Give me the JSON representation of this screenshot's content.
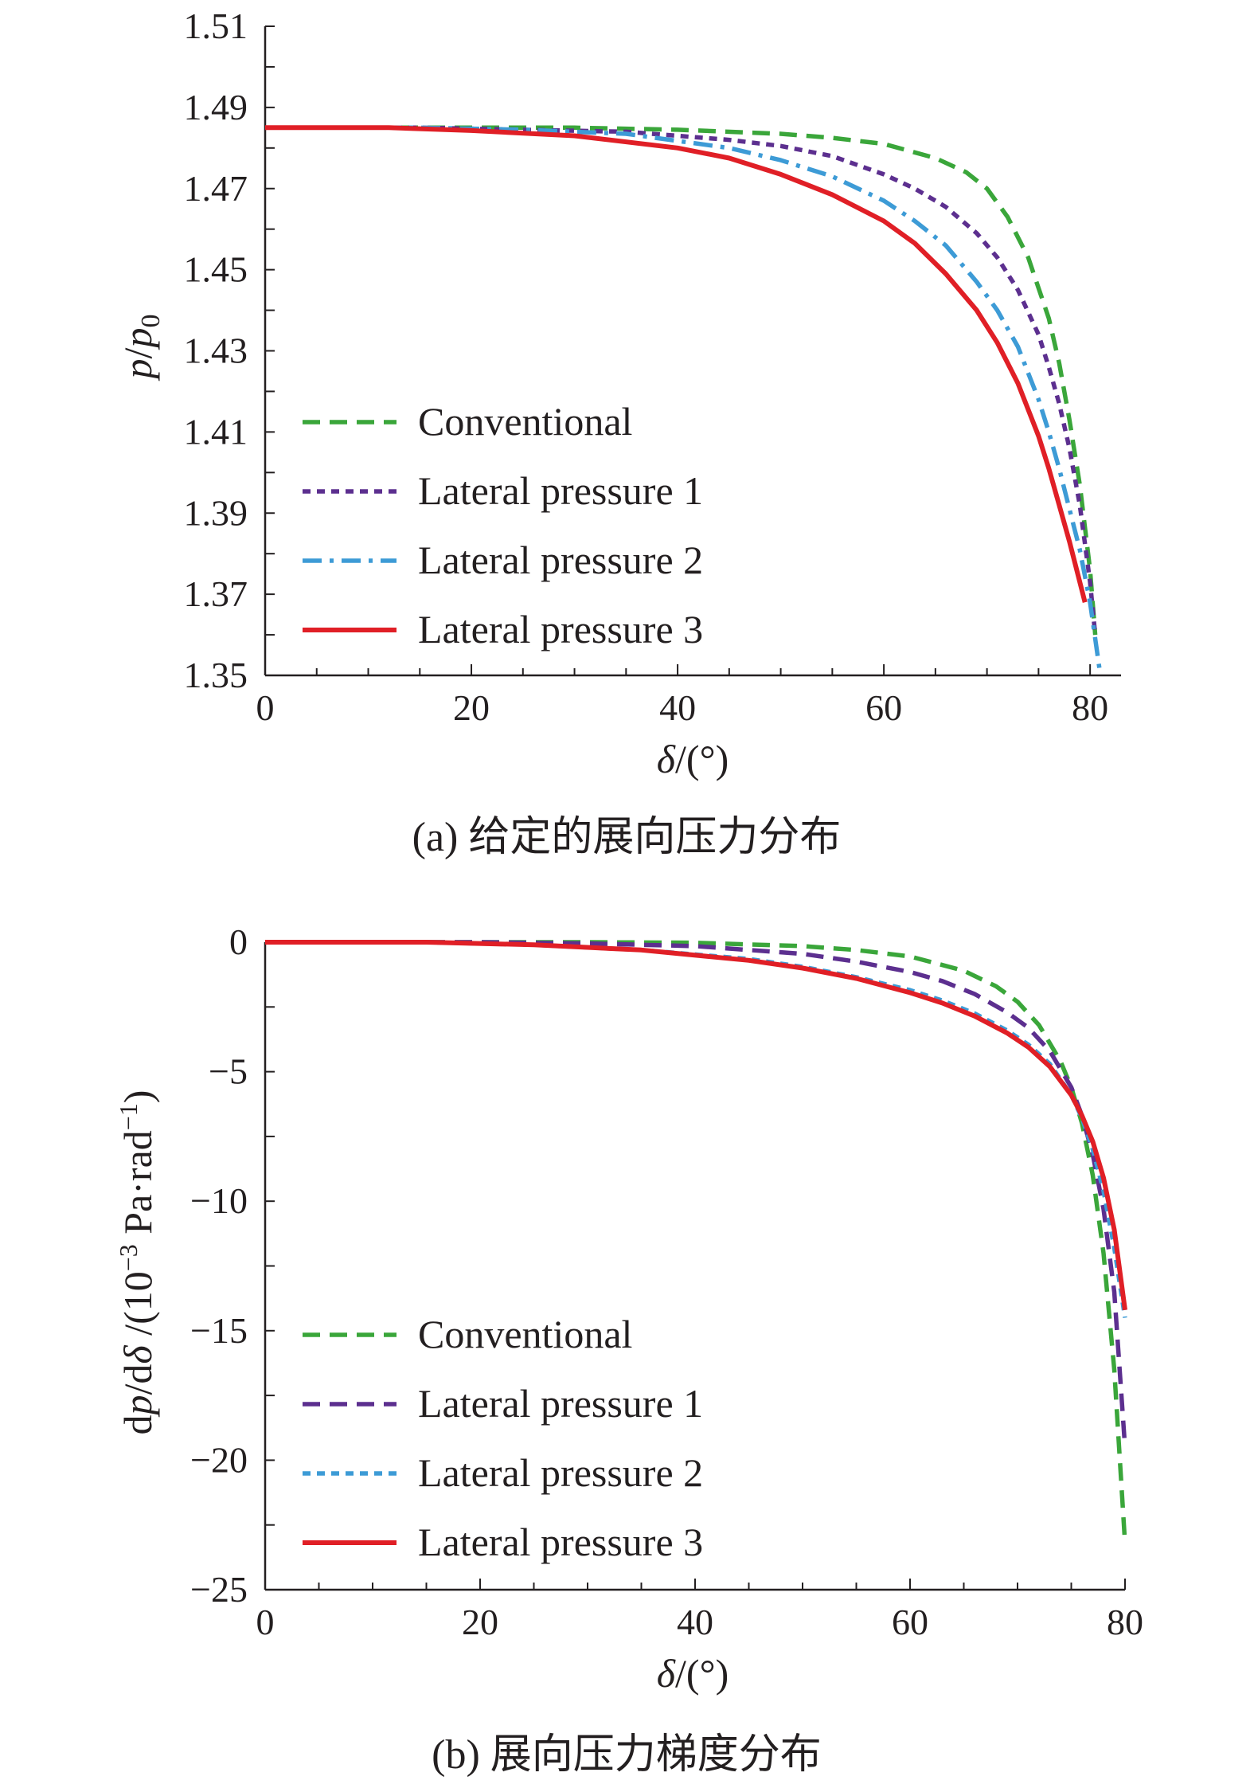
{
  "chart_data": [
    {
      "type": "line",
      "caption": "(a) 给定的展向压力分布",
      "xlabel": "δ/(°)",
      "ylabel": "p/p0",
      "xlim": [
        0,
        83
      ],
      "ylim": [
        1.35,
        1.51
      ],
      "xticks": [
        0,
        20,
        40,
        60,
        80
      ],
      "yticks": [
        1.35,
        1.37,
        1.39,
        1.41,
        1.43,
        1.45,
        1.47,
        1.49,
        1.51
      ],
      "xtick_labels": [
        "0",
        "20",
        "40",
        "60",
        "80"
      ],
      "ytick_labels": [
        "1.35",
        "1.37",
        "1.39",
        "1.41",
        "1.43",
        "1.45",
        "1.47",
        "1.49",
        "1.51"
      ],
      "legend_position": "lower-left",
      "series": [
        {
          "name": "Conventional",
          "color": "#3aa63a",
          "dash": "dashed",
          "x": [
            0,
            20,
            30,
            40,
            50,
            55,
            60,
            65,
            68,
            70,
            72,
            74,
            76,
            77,
            78,
            79,
            80,
            80.5
          ],
          "y": [
            1.485,
            1.485,
            1.485,
            1.4845,
            1.4835,
            1.4825,
            1.481,
            1.4775,
            1.474,
            1.47,
            1.463,
            1.453,
            1.438,
            1.427,
            1.413,
            1.397,
            1.376,
            1.36
          ]
        },
        {
          "name": "Lateral pressure 1",
          "color": "#5c2f8f",
          "dash": "dotted",
          "x": [
            0,
            15,
            25,
            35,
            45,
            50,
            55,
            60,
            63,
            66,
            69,
            71,
            73,
            75,
            76,
            77,
            78,
            79,
            80,
            80.5
          ],
          "y": [
            1.485,
            1.485,
            1.4845,
            1.484,
            1.482,
            1.4805,
            1.478,
            1.4735,
            1.47,
            1.4655,
            1.459,
            1.453,
            1.445,
            1.434,
            1.426,
            1.417,
            1.406,
            1.392,
            1.373,
            1.36
          ]
        },
        {
          "name": "Lateral pressure 2",
          "color": "#3d9bd6",
          "dash": "dashdot",
          "x": [
            0,
            15,
            25,
            35,
            45,
            50,
            55,
            60,
            63,
            66,
            69,
            71,
            73,
            75,
            76,
            77,
            78,
            79,
            80,
            81
          ],
          "y": [
            1.485,
            1.485,
            1.4845,
            1.4835,
            1.48,
            1.477,
            1.473,
            1.467,
            1.462,
            1.456,
            1.447,
            1.44,
            1.431,
            1.418,
            1.41,
            1.401,
            1.391,
            1.381,
            1.368,
            1.35
          ]
        },
        {
          "name": "Lateral pressure 3",
          "color": "#e01f26",
          "dash": "solid",
          "x": [
            0,
            12,
            20,
            30,
            40,
            45,
            50,
            55,
            60,
            63,
            66,
            69,
            71,
            73,
            75,
            76,
            77,
            78,
            79,
            79.5
          ],
          "y": [
            1.485,
            1.485,
            1.4843,
            1.483,
            1.48,
            1.4775,
            1.4735,
            1.4685,
            1.462,
            1.4565,
            1.449,
            1.44,
            1.432,
            1.422,
            1.409,
            1.401,
            1.392,
            1.383,
            1.373,
            1.368
          ]
        }
      ]
    },
    {
      "type": "line",
      "caption": "(b) 展向压力梯度分布",
      "xlabel": "δ/(°)",
      "ylabel": "dp/dδ /(10⁻³ Pa·rad⁻¹)",
      "xlim": [
        0,
        80
      ],
      "ylim": [
        -25,
        0
      ],
      "xticks": [
        0,
        20,
        40,
        60,
        80
      ],
      "yticks": [
        0,
        -5,
        -10,
        -15,
        -20,
        -25
      ],
      "xtick_labels": [
        "0",
        "20",
        "40",
        "60",
        "80"
      ],
      "ytick_labels": [
        "0",
        "−5",
        "−10",
        "−15",
        "−20",
        "−25"
      ],
      "legend_position": "lower-left",
      "series": [
        {
          "name": "Conventional",
          "color": "#3aa63a",
          "dash": "dashed",
          "x": [
            0,
            20,
            30,
            40,
            50,
            55,
            60,
            65,
            68,
            70,
            72,
            74,
            75,
            76,
            77,
            78,
            79,
            80
          ],
          "y": [
            0,
            0,
            0,
            -0.02,
            -0.15,
            -0.3,
            -0.55,
            -1.1,
            -1.7,
            -2.3,
            -3.2,
            -4.6,
            -5.6,
            -7.0,
            -9.0,
            -12.0,
            -16.5,
            -23.2
          ]
        },
        {
          "name": "Lateral pressure 1",
          "color": "#5c2f8f",
          "dash": "dashed",
          "x": [
            0,
            20,
            30,
            40,
            50,
            55,
            60,
            63,
            66,
            69,
            71,
            73,
            75,
            76,
            77,
            78,
            79,
            80
          ],
          "y": [
            0,
            0,
            -0.05,
            -0.15,
            -0.45,
            -0.75,
            -1.15,
            -1.5,
            -2.0,
            -2.7,
            -3.3,
            -4.2,
            -5.6,
            -6.7,
            -8.2,
            -10.3,
            -13.5,
            -19.5
          ]
        },
        {
          "name": "Lateral pressure 2",
          "color": "#3d9bd6",
          "dash": "dotted",
          "x": [
            0,
            15,
            25,
            35,
            45,
            50,
            55,
            60,
            63,
            66,
            69,
            71,
            73,
            75,
            76,
            77,
            78,
            79,
            80
          ],
          "y": [
            0,
            0,
            -0.1,
            -0.3,
            -0.65,
            -0.95,
            -1.35,
            -1.85,
            -2.25,
            -2.75,
            -3.4,
            -3.95,
            -4.7,
            -5.9,
            -6.8,
            -8.0,
            -9.6,
            -11.8,
            -14.5
          ]
        },
        {
          "name": "Lateral pressure 3",
          "color": "#e01f26",
          "dash": "solid",
          "x": [
            0,
            15,
            25,
            35,
            45,
            50,
            55,
            60,
            63,
            66,
            69,
            71,
            73,
            75,
            76,
            77,
            78,
            79,
            80
          ],
          "y": [
            0,
            0,
            -0.1,
            -0.3,
            -0.7,
            -1.0,
            -1.4,
            -1.95,
            -2.35,
            -2.85,
            -3.5,
            -4.05,
            -4.8,
            -5.9,
            -6.7,
            -7.7,
            -9.1,
            -11.1,
            -14.2
          ]
        }
      ]
    }
  ]
}
